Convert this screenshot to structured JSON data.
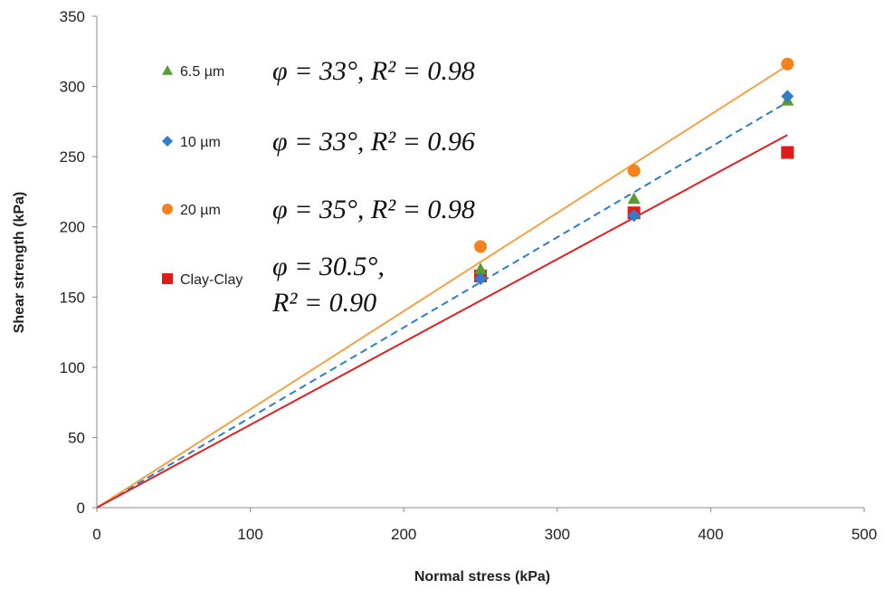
{
  "chart_data": {
    "type": "scatter",
    "title": "",
    "xlabel": "Normal stress (kPa)",
    "ylabel": "Shear strength (kPa)",
    "xlim": [
      0,
      500
    ],
    "ylim": [
      0,
      350
    ],
    "xticks": [
      0,
      100,
      200,
      300,
      400,
      500
    ],
    "yticks": [
      0,
      50,
      100,
      150,
      200,
      250,
      300,
      350
    ],
    "grid": false,
    "legend_placement": "top-left",
    "series": [
      {
        "name": "6.5 µm",
        "marker": "triangle",
        "color": "#5a9a32",
        "x": [
          250,
          350,
          450
        ],
        "y": [
          170,
          220,
          290
        ],
        "fit": {
          "slope": 0.649,
          "dash": "none",
          "visible": false
        },
        "annotation": [
          "φ = 33°, R² = 0.98"
        ]
      },
      {
        "name": "10 µm",
        "marker": "diamond",
        "color": "#2f7fc8",
        "x": [
          250,
          350,
          450
        ],
        "y": [
          163,
          208,
          293
        ],
        "fit": {
          "slope": 0.642,
          "dash": "dashed",
          "color": "#2f7fc8",
          "visible": true
        },
        "annotation": [
          "φ = 33°, R² = 0.96"
        ]
      },
      {
        "name": "20 µm",
        "marker": "circle",
        "color": "#f58220",
        "x": [
          250,
          350,
          450
        ],
        "y": [
          186,
          240,
          316
        ],
        "fit": {
          "slope": 0.7,
          "dash": "none",
          "color": "#f7a146",
          "visible": true
        },
        "annotation": [
          "φ = 35°, R² = 0.98"
        ]
      },
      {
        "name": "Clay-Clay",
        "marker": "square",
        "color": "#e01b1b",
        "x": [
          250,
          350,
          450
        ],
        "y": [
          165,
          210,
          253
        ],
        "fit": {
          "slope": 0.59,
          "dash": "none",
          "color": "#e02020",
          "visible": true
        },
        "annotation": [
          "φ = 30.5°,",
          "R² = 0.90"
        ]
      }
    ]
  }
}
